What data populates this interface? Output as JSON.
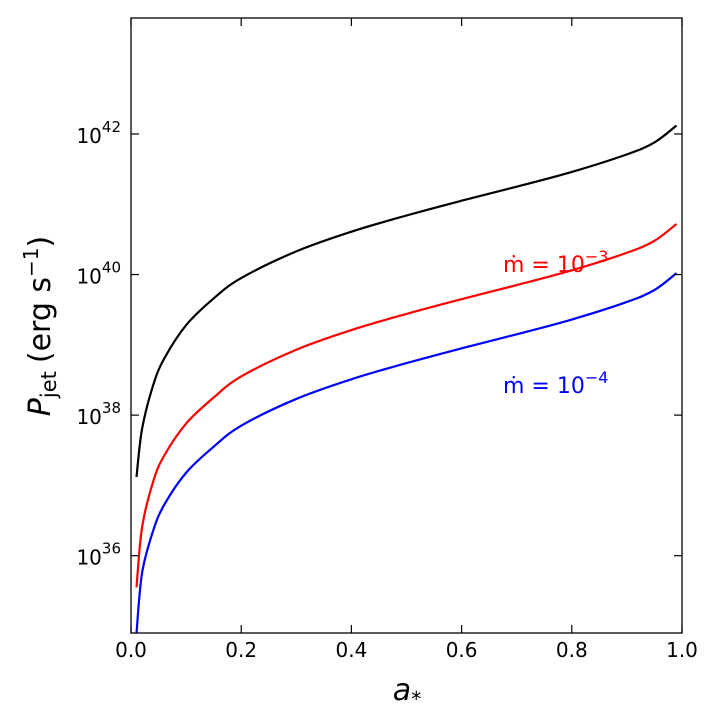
{
  "chart_data": {
    "type": "line",
    "title": "",
    "xlabel": "a",
    "xlabel_sub": "*",
    "ylabel": "P",
    "ylabel_sub": "jet",
    "ylabel_units_prefix": "(erg s",
    "ylabel_units_exp": "−1",
    "ylabel_units_suffix": ")",
    "xlim": [
      0.0,
      1.0
    ],
    "ylim_log10": [
      34.9,
      43.65
    ],
    "yscale": "log",
    "grid": false,
    "x_ticks": [
      {
        "value": 0.0,
        "label": "0.0"
      },
      {
        "value": 0.2,
        "label": "0.2"
      },
      {
        "value": 0.4,
        "label": "0.4"
      },
      {
        "value": 0.6,
        "label": "0.6"
      },
      {
        "value": 0.8,
        "label": "0.8"
      },
      {
        "value": 1.0,
        "label": "1.0"
      }
    ],
    "y_ticks": [
      {
        "log10": 36,
        "base": "10",
        "exp": "36"
      },
      {
        "log10": 38,
        "base": "10",
        "exp": "38"
      },
      {
        "log10": 40,
        "base": "10",
        "exp": "40"
      },
      {
        "log10": 42,
        "base": "10",
        "exp": "42"
      }
    ],
    "x": [
      0.01,
      0.02,
      0.04,
      0.06,
      0.1,
      0.15,
      0.2,
      0.3,
      0.4,
      0.5,
      0.6,
      0.7,
      0.8,
      0.9,
      0.95,
      0.99
    ],
    "series": [
      {
        "color": "#000000",
        "log10_values": [
          37.12,
          37.8,
          38.42,
          38.8,
          39.28,
          39.66,
          39.95,
          40.33,
          40.61,
          40.84,
          41.05,
          41.25,
          41.46,
          41.71,
          41.88,
          42.12
        ]
      },
      {
        "color": "#ff0000",
        "annotation": {
          "prefix": "ṁ = 10",
          "exp": "−3"
        },
        "log10_values": [
          35.55,
          36.4,
          37.05,
          37.42,
          37.88,
          38.25,
          38.55,
          38.93,
          39.21,
          39.44,
          39.65,
          39.85,
          40.06,
          40.31,
          40.48,
          40.72
        ]
      },
      {
        "color": "#0000ff",
        "annotation": {
          "prefix": "ṁ = 10",
          "exp": "−4"
        },
        "log10_values": [
          34.9,
          35.75,
          36.35,
          36.72,
          37.18,
          37.55,
          37.85,
          38.23,
          38.51,
          38.74,
          38.95,
          39.15,
          39.36,
          39.61,
          39.78,
          40.02
        ]
      }
    ]
  }
}
